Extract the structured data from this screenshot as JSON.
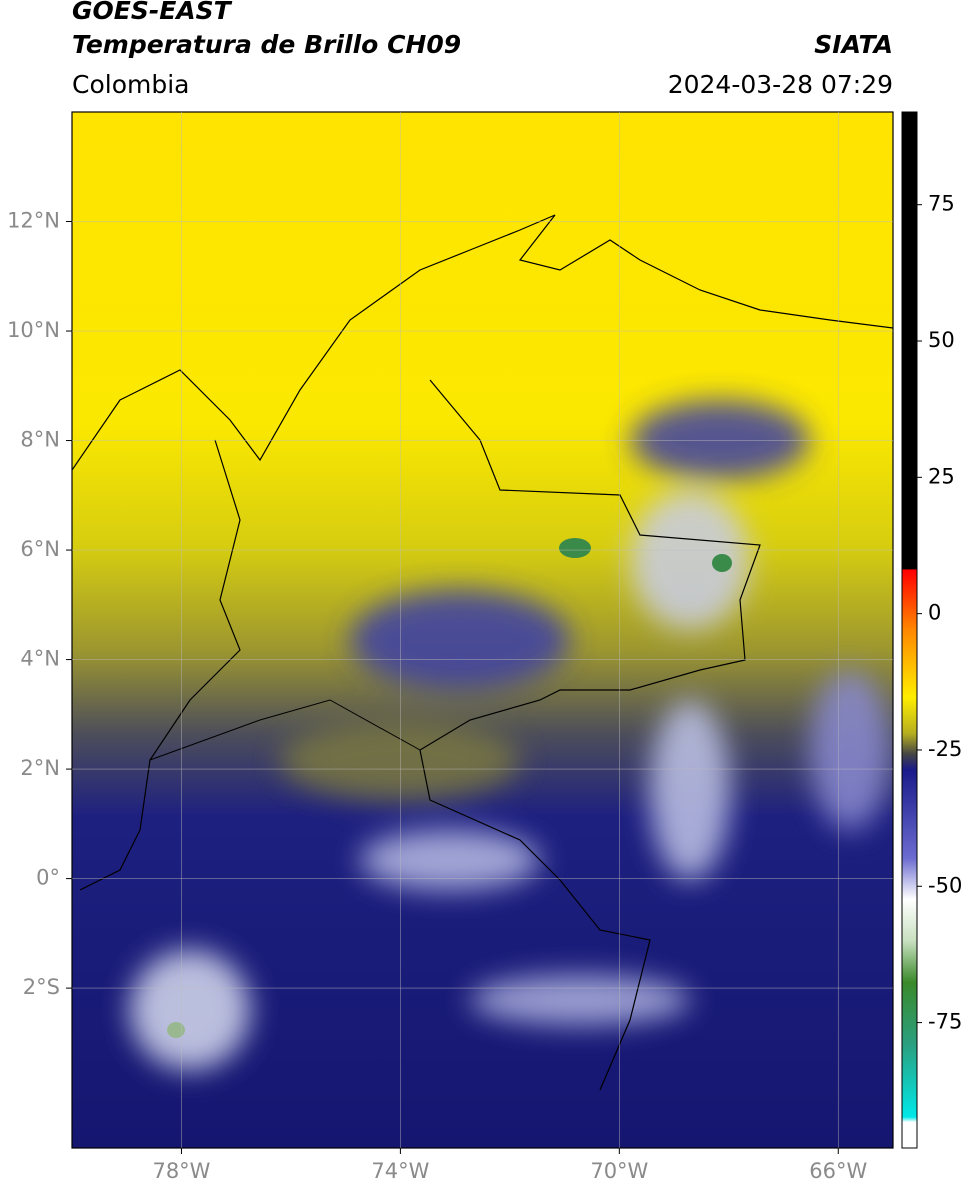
{
  "header": {
    "satellite": "GOES-EAST",
    "product": "Temperatura de Brillo CH09",
    "region": "Colombia",
    "source": "SIATA",
    "datetime": "2024-03-28 07:29"
  },
  "map": {
    "xlim": [
      -80,
      -65
    ],
    "ylim": [
      -4.92,
      14
    ],
    "xticks": [
      {
        "value": -78,
        "label": "78°W"
      },
      {
        "value": -74,
        "label": "74°W"
      },
      {
        "value": -70,
        "label": "70°W"
      },
      {
        "value": -66,
        "label": "66°W"
      }
    ],
    "yticks": [
      {
        "value": 12,
        "label": "12°N"
      },
      {
        "value": 10,
        "label": "10°N"
      },
      {
        "value": 8,
        "label": "8°N"
      },
      {
        "value": 6,
        "label": "6°N"
      },
      {
        "value": 4,
        "label": "4°N"
      },
      {
        "value": 2,
        "label": "2°N"
      },
      {
        "value": 0,
        "label": "0°"
      },
      {
        "value": -2,
        "label": "2°S"
      }
    ]
  },
  "colorbar": {
    "lim": [
      -98,
      92
    ],
    "ticks": [
      75,
      50,
      25,
      0,
      -25,
      -50,
      -75
    ]
  }
}
